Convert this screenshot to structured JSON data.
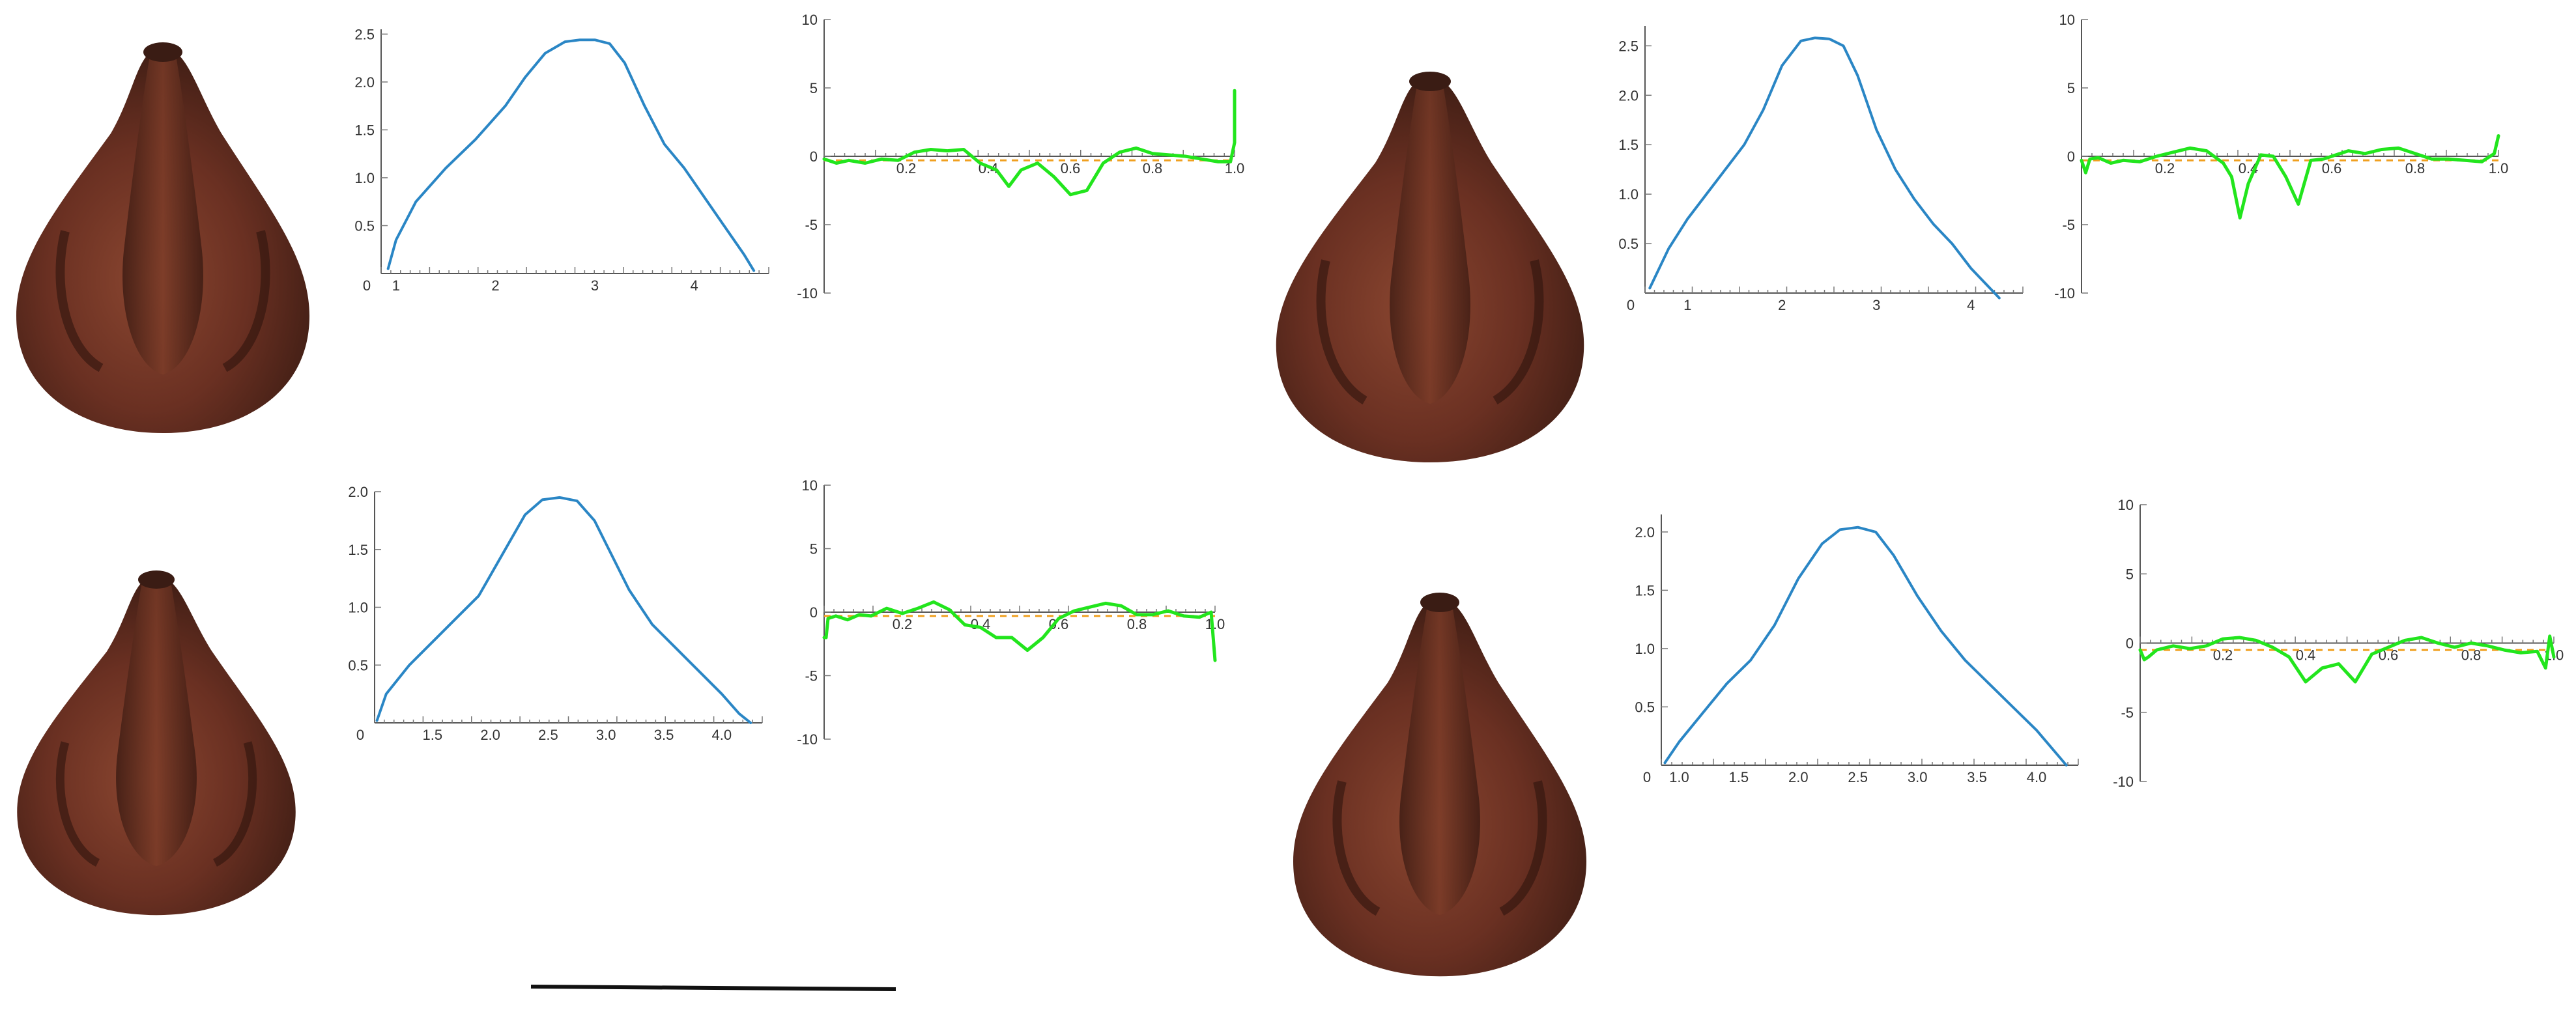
{
  "colors": {
    "profile_line": "#2a86c5",
    "deviation_line": "#22e51d",
    "mean_line": "#f0a020",
    "axis": "#555555",
    "seed_dark": "#4a2418",
    "seed_mid": "#7a3a26",
    "seed_light": "#9a5a44",
    "scale_bar": "#111111"
  },
  "chart_data": [
    {
      "type": "line",
      "x_origin_label": "0",
      "x_ticks": [
        "1",
        "2",
        "3",
        "4"
      ],
      "y_ticks": [
        "0.5",
        "1.0",
        "1.5",
        "2.0",
        "2.5"
      ],
      "xlim": [
        0.85,
        4.75
      ],
      "ylim": [
        0,
        2.55
      ],
      "series": [
        {
          "x": [
            0.92,
            1.0,
            1.2,
            1.5,
            1.8,
            2.1,
            2.3,
            2.5,
            2.7,
            2.85,
            3.0,
            3.15,
            3.3,
            3.5,
            3.7,
            3.9,
            4.1,
            4.3,
            4.5,
            4.6
          ],
          "y": [
            0.05,
            0.35,
            0.75,
            1.1,
            1.4,
            1.75,
            2.05,
            2.3,
            2.42,
            2.44,
            2.44,
            2.4,
            2.2,
            1.75,
            1.35,
            1.1,
            0.8,
            0.5,
            0.2,
            0.03
          ]
        }
      ]
    },
    {
      "type": "line",
      "x_ticks": [
        "0.2",
        "0.4",
        "0.6",
        "0.8",
        "1.0"
      ],
      "y_ticks": [
        "10",
        "5",
        "0",
        "-5",
        "-10"
      ],
      "xlim": [
        0,
        1.0
      ],
      "ylim": [
        -10,
        10
      ],
      "mean_value": -0.3,
      "series": [
        {
          "x": [
            0.0,
            0.03,
            0.06,
            0.1,
            0.14,
            0.18,
            0.22,
            0.26,
            0.3,
            0.34,
            0.38,
            0.42,
            0.45,
            0.48,
            0.52,
            0.56,
            0.6,
            0.64,
            0.68,
            0.72,
            0.76,
            0.8,
            0.84,
            0.88,
            0.92,
            0.96,
            0.99,
            1.0,
            1.0
          ],
          "y": [
            -0.2,
            -0.5,
            -0.3,
            -0.5,
            -0.2,
            -0.3,
            0.3,
            0.5,
            0.4,
            0.5,
            -0.5,
            -1.0,
            -2.2,
            -1.0,
            -0.5,
            -1.5,
            -2.8,
            -2.5,
            -0.5,
            0.3,
            0.6,
            0.2,
            0.1,
            0.0,
            -0.2,
            -0.4,
            -0.4,
            1.0,
            4.8
          ]
        }
      ]
    },
    {
      "type": "line",
      "x_origin_label": "0",
      "x_ticks": [
        "1",
        "2",
        "3",
        "4"
      ],
      "y_ticks": [
        "0.5",
        "1.0",
        "1.5",
        "2.0",
        "2.5"
      ],
      "xlim": [
        0.55,
        4.55
      ],
      "ylim": [
        0,
        2.7
      ],
      "series": [
        {
          "x": [
            0.6,
            0.8,
            1.0,
            1.2,
            1.4,
            1.6,
            1.8,
            2.0,
            2.2,
            2.35,
            2.5,
            2.65,
            2.8,
            3.0,
            3.2,
            3.4,
            3.6,
            3.8,
            4.0,
            4.2,
            4.3
          ],
          "y": [
            0.05,
            0.45,
            0.75,
            1.0,
            1.25,
            1.5,
            1.85,
            2.3,
            2.55,
            2.58,
            2.57,
            2.5,
            2.2,
            1.65,
            1.25,
            0.95,
            0.7,
            0.5,
            0.25,
            0.05,
            -0.05
          ]
        }
      ]
    },
    {
      "type": "line",
      "x_ticks": [
        "0.2",
        "0.4",
        "0.6",
        "0.8",
        "1.0"
      ],
      "y_ticks": [
        "10",
        "5",
        "0",
        "-5",
        "-10"
      ],
      "xlim": [
        0,
        1.0
      ],
      "ylim": [
        -10,
        10
      ],
      "mean_value": -0.3,
      "series": [
        {
          "x": [
            0.0,
            0.01,
            0.02,
            0.04,
            0.07,
            0.1,
            0.14,
            0.18,
            0.22,
            0.26,
            0.3,
            0.34,
            0.36,
            0.38,
            0.4,
            0.43,
            0.46,
            0.49,
            0.52,
            0.55,
            0.58,
            0.61,
            0.64,
            0.68,
            0.72,
            0.76,
            0.8,
            0.84,
            0.88,
            0.92,
            0.96,
            0.99,
            1.0
          ],
          "y": [
            -0.3,
            -1.2,
            -0.2,
            -0.1,
            -0.5,
            -0.3,
            -0.4,
            0.0,
            0.3,
            0.6,
            0.4,
            -0.5,
            -1.5,
            -4.5,
            -2.0,
            0.1,
            0.0,
            -1.5,
            -3.5,
            -0.3,
            -0.2,
            0.1,
            0.4,
            0.2,
            0.5,
            0.6,
            0.2,
            -0.2,
            -0.2,
            -0.3,
            -0.4,
            0.2,
            1.5
          ]
        }
      ]
    },
    {
      "type": "line",
      "x_origin_label": "0",
      "x_ticks": [
        "1.5",
        "2.0",
        "2.5",
        "3.0",
        "3.5",
        "4.0"
      ],
      "y_ticks": [
        "0.5",
        "1.0",
        "1.5",
        "2.0"
      ],
      "xlim": [
        1.0,
        4.35
      ],
      "ylim": [
        0,
        2.0
      ],
      "series": [
        {
          "x": [
            1.02,
            1.1,
            1.3,
            1.5,
            1.7,
            1.9,
            2.1,
            2.3,
            2.45,
            2.6,
            2.75,
            2.9,
            3.0,
            3.2,
            3.4,
            3.6,
            3.8,
            4.0,
            4.15,
            4.25
          ],
          "y": [
            0.02,
            0.25,
            0.5,
            0.7,
            0.9,
            1.1,
            1.45,
            1.8,
            1.93,
            1.95,
            1.92,
            1.75,
            1.55,
            1.15,
            0.85,
            0.65,
            0.45,
            0.25,
            0.08,
            0.0
          ]
        }
      ]
    },
    {
      "type": "line",
      "x_ticks": [
        "0.2",
        "0.4",
        "0.6",
        "0.8",
        "1.0"
      ],
      "y_ticks": [
        "10",
        "5",
        "0",
        "-5",
        "-10"
      ],
      "xlim": [
        0,
        1.0
      ],
      "ylim": [
        -10,
        10
      ],
      "mean_value": -0.3,
      "series": [
        {
          "x": [
            0.0,
            0.005,
            0.01,
            0.03,
            0.06,
            0.09,
            0.12,
            0.16,
            0.2,
            0.24,
            0.28,
            0.32,
            0.36,
            0.4,
            0.44,
            0.48,
            0.52,
            0.56,
            0.6,
            0.64,
            0.68,
            0.72,
            0.76,
            0.8,
            0.84,
            0.88,
            0.92,
            0.96,
            0.99,
            1.0
          ],
          "y": [
            -2.0,
            -2.0,
            -0.5,
            -0.3,
            -0.6,
            -0.2,
            -0.3,
            0.3,
            -0.1,
            0.3,
            0.8,
            0.2,
            -1.0,
            -1.2,
            -2.0,
            -2.0,
            -3.0,
            -2.0,
            -0.5,
            0.1,
            0.4,
            0.7,
            0.5,
            -0.2,
            -0.2,
            0.1,
            -0.3,
            -0.4,
            0.0,
            -3.8
          ]
        }
      ]
    },
    {
      "type": "line",
      "x_origin_label": "0",
      "x_ticks": [
        "1.0",
        "1.5",
        "2.0",
        "2.5",
        "3.0",
        "3.5",
        "4.0"
      ],
      "y_ticks": [
        "0.5",
        "1.0",
        "1.5",
        "2.0"
      ],
      "xlim": [
        0.85,
        4.35
      ],
      "ylim": [
        0,
        2.15
      ],
      "series": [
        {
          "x": [
            0.88,
            1.0,
            1.2,
            1.4,
            1.6,
            1.8,
            2.0,
            2.2,
            2.35,
            2.5,
            2.65,
            2.8,
            3.0,
            3.2,
            3.4,
            3.6,
            3.8,
            4.0,
            4.15,
            4.25
          ],
          "y": [
            0.02,
            0.2,
            0.45,
            0.7,
            0.9,
            1.2,
            1.6,
            1.9,
            2.02,
            2.04,
            2.0,
            1.8,
            1.45,
            1.15,
            0.9,
            0.7,
            0.5,
            0.3,
            0.12,
            0.0
          ]
        }
      ]
    },
    {
      "type": "line",
      "x_ticks": [
        "0.2",
        "0.4",
        "0.6",
        "0.8",
        "1.0"
      ],
      "y_ticks": [
        "10",
        "5",
        "0",
        "-5",
        "-10"
      ],
      "xlim": [
        0,
        1.0
      ],
      "ylim": [
        -10,
        10
      ],
      "mean_value": -0.5,
      "series": [
        {
          "x": [
            0.0,
            0.01,
            0.02,
            0.04,
            0.08,
            0.12,
            0.16,
            0.2,
            0.24,
            0.28,
            0.32,
            0.36,
            0.4,
            0.44,
            0.48,
            0.52,
            0.56,
            0.6,
            0.64,
            0.68,
            0.72,
            0.76,
            0.8,
            0.84,
            0.88,
            0.92,
            0.96,
            0.98,
            0.99,
            1.0
          ],
          "y": [
            -0.5,
            -1.2,
            -1.0,
            -0.5,
            -0.2,
            -0.4,
            -0.2,
            0.3,
            0.4,
            0.2,
            -0.3,
            -1.0,
            -2.8,
            -1.8,
            -1.5,
            -2.8,
            -0.8,
            -0.3,
            0.2,
            0.4,
            0.0,
            -0.3,
            0.0,
            -0.2,
            -0.5,
            -0.7,
            -0.6,
            -1.8,
            0.5,
            -1.0
          ]
        }
      ]
    }
  ]
}
